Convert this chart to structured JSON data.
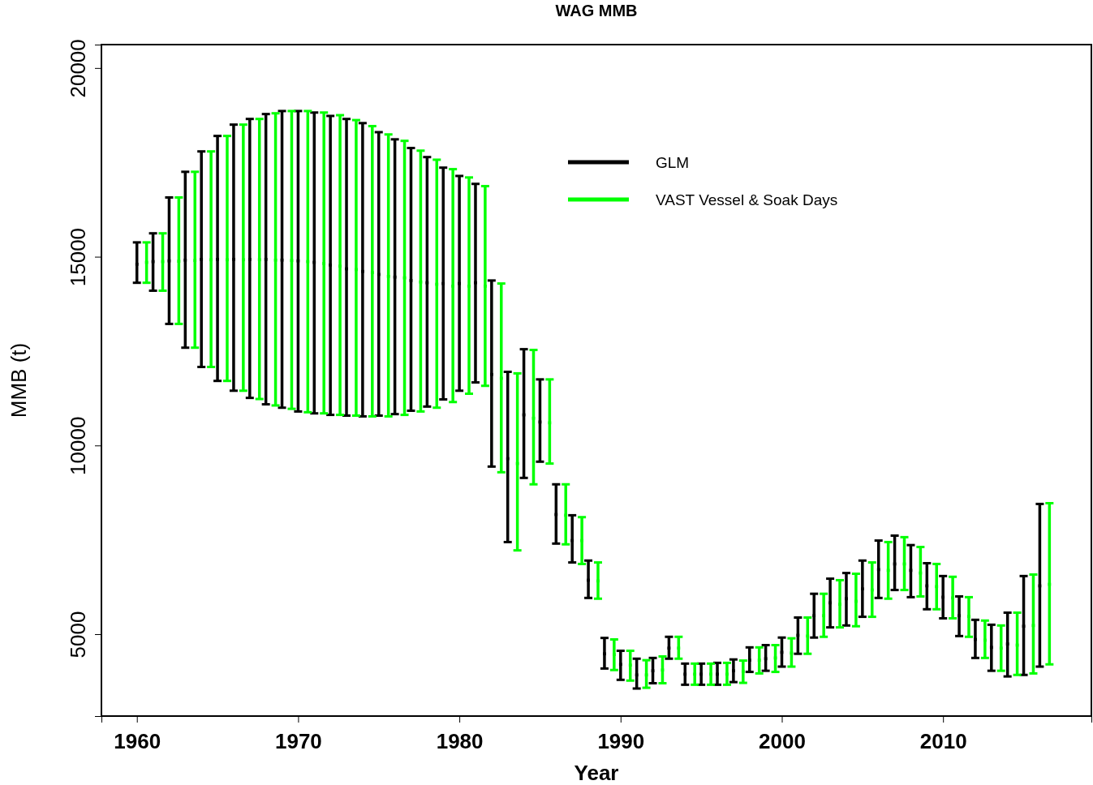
{
  "chart_data": {
    "type": "scatter",
    "title": "WAG MMB",
    "xlabel": "Year",
    "ylabel": "MMB (t)",
    "xlim": [
      1957.8,
      2019.2
    ],
    "ylim": [
      2830,
      20620
    ],
    "xticks": [
      1960,
      1970,
      1980,
      1990,
      2000,
      2010
    ],
    "yticks": [
      5000,
      10000,
      15000,
      20000
    ],
    "legend": "top right",
    "marker": "square",
    "series": [
      {
        "name": "GLM",
        "color": "#000000",
        "x": [
          1960,
          1961,
          1962,
          1963,
          1964,
          1965,
          1966,
          1967,
          1968,
          1969,
          1970,
          1971,
          1972,
          1973,
          1974,
          1975,
          1976,
          1977,
          1978,
          1979,
          1980,
          1981,
          1982,
          1983,
          1984,
          1985,
          1986,
          1987,
          1988,
          1989,
          1990,
          1991,
          1992,
          1993,
          1994,
          1995,
          1996,
          1997,
          1998,
          1999,
          2000,
          2001,
          2002,
          2003,
          2004,
          2005,
          2006,
          2007,
          2008,
          2009,
          2010,
          2011,
          2012,
          2013,
          2014,
          2015,
          2016
        ],
        "values": [
          14800,
          14870,
          14890,
          14910,
          14930,
          14930,
          14930,
          14930,
          14930,
          14910,
          14890,
          14850,
          14780,
          14680,
          14610,
          14530,
          14460,
          14370,
          14310,
          14290,
          14290,
          14310,
          11880,
          9650,
          10810,
          10620,
          8170,
          7480,
          6430,
          4480,
          4200,
          3920,
          4030,
          4630,
          3940,
          3940,
          3940,
          4030,
          4310,
          4350,
          4520,
          4970,
          5490,
          5830,
          5940,
          6200,
          6710,
          6860,
          6690,
          6280,
          5980,
          5490,
          4860,
          4650,
          4740,
          5210,
          6280
        ],
        "errors": [
          [
            14310,
            15380
          ],
          [
            14100,
            15620
          ],
          [
            13220,
            16570
          ],
          [
            12590,
            17250
          ],
          [
            12080,
            17790
          ],
          [
            11710,
            18200
          ],
          [
            11450,
            18500
          ],
          [
            11260,
            18650
          ],
          [
            11090,
            18780
          ],
          [
            11000,
            18860
          ],
          [
            10900,
            18860
          ],
          [
            10850,
            18820
          ],
          [
            10810,
            18730
          ],
          [
            10790,
            18650
          ],
          [
            10770,
            18540
          ],
          [
            10790,
            18300
          ],
          [
            10830,
            18110
          ],
          [
            10920,
            17880
          ],
          [
            11030,
            17640
          ],
          [
            11220,
            17360
          ],
          [
            11450,
            17140
          ],
          [
            11670,
            16930
          ],
          [
            9440,
            14370
          ],
          [
            7440,
            11950
          ],
          [
            9140,
            12550
          ],
          [
            9570,
            11750
          ],
          [
            7400,
            8970
          ],
          [
            6900,
            8150
          ],
          [
            5960,
            6950
          ],
          [
            4090,
            4900
          ],
          [
            3790,
            4560
          ],
          [
            3560,
            4350
          ],
          [
            3700,
            4370
          ],
          [
            4350,
            4930
          ],
          [
            3660,
            4220
          ],
          [
            3660,
            4220
          ],
          [
            3660,
            4240
          ],
          [
            3730,
            4330
          ],
          [
            4000,
            4650
          ],
          [
            4030,
            4710
          ],
          [
            4140,
            4910
          ],
          [
            4480,
            5440
          ],
          [
            4910,
            6070
          ],
          [
            5180,
            6470
          ],
          [
            5230,
            6620
          ],
          [
            5460,
            6950
          ],
          [
            5960,
            7480
          ],
          [
            6170,
            7610
          ],
          [
            5980,
            7360
          ],
          [
            5660,
            6880
          ],
          [
            5420,
            6540
          ],
          [
            4950,
            6000
          ],
          [
            4370,
            5380
          ],
          [
            4030,
            5250
          ],
          [
            3880,
            5570
          ],
          [
            3920,
            6540
          ],
          [
            4140,
            8450
          ]
        ]
      },
      {
        "name": "VAST Vessel & Soak Days",
        "color": "#00ff00",
        "x": [
          1960.6,
          1961.6,
          1962.6,
          1963.6,
          1964.6,
          1965.6,
          1966.6,
          1967.6,
          1968.6,
          1969.6,
          1970.6,
          1971.6,
          1972.6,
          1973.6,
          1974.6,
          1975.6,
          1976.6,
          1977.6,
          1978.6,
          1979.6,
          1980.6,
          1981.6,
          1982.6,
          1983.6,
          1984.6,
          1985.6,
          1986.6,
          1987.6,
          1988.6,
          1989.6,
          1990.6,
          1991.6,
          1992.6,
          1993.6,
          1994.6,
          1995.6,
          1996.6,
          1997.6,
          1998.6,
          1999.6,
          2000.6,
          2001.6,
          2002.6,
          2003.6,
          2004.6,
          2005.6,
          2006.6,
          2007.6,
          2008.6,
          2009.6,
          2010.6,
          2011.6,
          2012.6,
          2013.6,
          2014.6,
          2015.6,
          2016.6
        ],
        "values": [
          14850,
          14870,
          14880,
          14900,
          14920,
          14920,
          14920,
          14920,
          14910,
          14900,
          14870,
          14820,
          14750,
          14660,
          14580,
          14480,
          14440,
          14330,
          14270,
          14220,
          14220,
          14220,
          11780,
          9520,
          10720,
          10600,
          8150,
          7480,
          6410,
          4460,
          4180,
          3920,
          4050,
          4630,
          3940,
          3940,
          3940,
          4010,
          4310,
          4370,
          4500,
          4950,
          5490,
          5790,
          5870,
          6170,
          6690,
          6860,
          6620,
          6260,
          5960,
          5470,
          4840,
          4630,
          4710,
          5230,
          6320
        ],
        "errors": [
          [
            14310,
            15380
          ],
          [
            14100,
            15620
          ],
          [
            13220,
            16570
          ],
          [
            12590,
            17250
          ],
          [
            12080,
            17790
          ],
          [
            11710,
            18200
          ],
          [
            11450,
            18500
          ],
          [
            11230,
            18650
          ],
          [
            11060,
            18800
          ],
          [
            10970,
            18860
          ],
          [
            10880,
            18860
          ],
          [
            10850,
            18820
          ],
          [
            10810,
            18750
          ],
          [
            10790,
            18620
          ],
          [
            10770,
            18460
          ],
          [
            10770,
            18240
          ],
          [
            10810,
            18070
          ],
          [
            10900,
            17810
          ],
          [
            11000,
            17570
          ],
          [
            11150,
            17320
          ],
          [
            11370,
            17100
          ],
          [
            11580,
            16870
          ],
          [
            9290,
            14290
          ],
          [
            7220,
            11910
          ],
          [
            8970,
            12530
          ],
          [
            9520,
            11750
          ],
          [
            7380,
            8970
          ],
          [
            6860,
            8100
          ],
          [
            5940,
            6900
          ],
          [
            4050,
            4860
          ],
          [
            3770,
            4560
          ],
          [
            3580,
            4310
          ],
          [
            3700,
            4410
          ],
          [
            4350,
            4930
          ],
          [
            3660,
            4220
          ],
          [
            3660,
            4220
          ],
          [
            3660,
            4240
          ],
          [
            3710,
            4300
          ],
          [
            3960,
            4650
          ],
          [
            4000,
            4710
          ],
          [
            4140,
            4890
          ],
          [
            4480,
            5440
          ],
          [
            4930,
            6070
          ],
          [
            5180,
            6430
          ],
          [
            5210,
            6600
          ],
          [
            5460,
            6900
          ],
          [
            5940,
            7440
          ],
          [
            6170,
            7570
          ],
          [
            6000,
            7310
          ],
          [
            5660,
            6860
          ],
          [
            5420,
            6520
          ],
          [
            4930,
            5980
          ],
          [
            4370,
            5360
          ],
          [
            4030,
            5230
          ],
          [
            3920,
            5570
          ],
          [
            3960,
            6580
          ],
          [
            4200,
            8470
          ]
        ]
      }
    ]
  }
}
